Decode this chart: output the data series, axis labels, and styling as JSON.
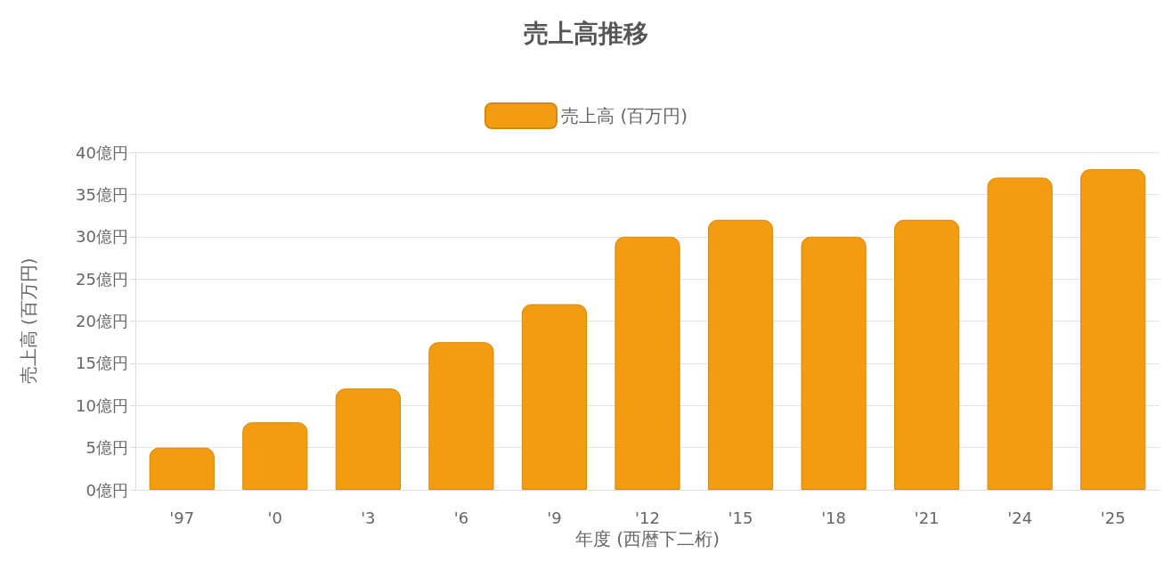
{
  "chart_data": {
    "type": "bar",
    "title": "売上高推移",
    "xlabel": "年度 (西暦下二桁)",
    "ylabel": "売上高 (百万円)",
    "categories": [
      "'97",
      "'0",
      "'3",
      "'6",
      "'9",
      "'12",
      "'15",
      "'18",
      "'21",
      "'24",
      "'25"
    ],
    "series": [
      {
        "name": "売上高 (百万円)",
        "color": "#f39c12",
        "values": [
          5,
          8,
          12,
          17.5,
          22,
          30,
          32,
          30,
          32,
          37,
          38
        ]
      }
    ],
    "ylim": [
      0,
      40
    ],
    "yticks": [
      {
        "value": 0,
        "label": "0億円"
      },
      {
        "value": 5,
        "label": "5億円"
      },
      {
        "value": 10,
        "label": "10億円"
      },
      {
        "value": 15,
        "label": "15億円"
      },
      {
        "value": 20,
        "label": "20億円"
      },
      {
        "value": 25,
        "label": "25億円"
      },
      {
        "value": 30,
        "label": "30億円"
      },
      {
        "value": 35,
        "label": "35億円"
      },
      {
        "value": 40,
        "label": "40億円"
      }
    ],
    "grid": "y",
    "legend": "top"
  }
}
